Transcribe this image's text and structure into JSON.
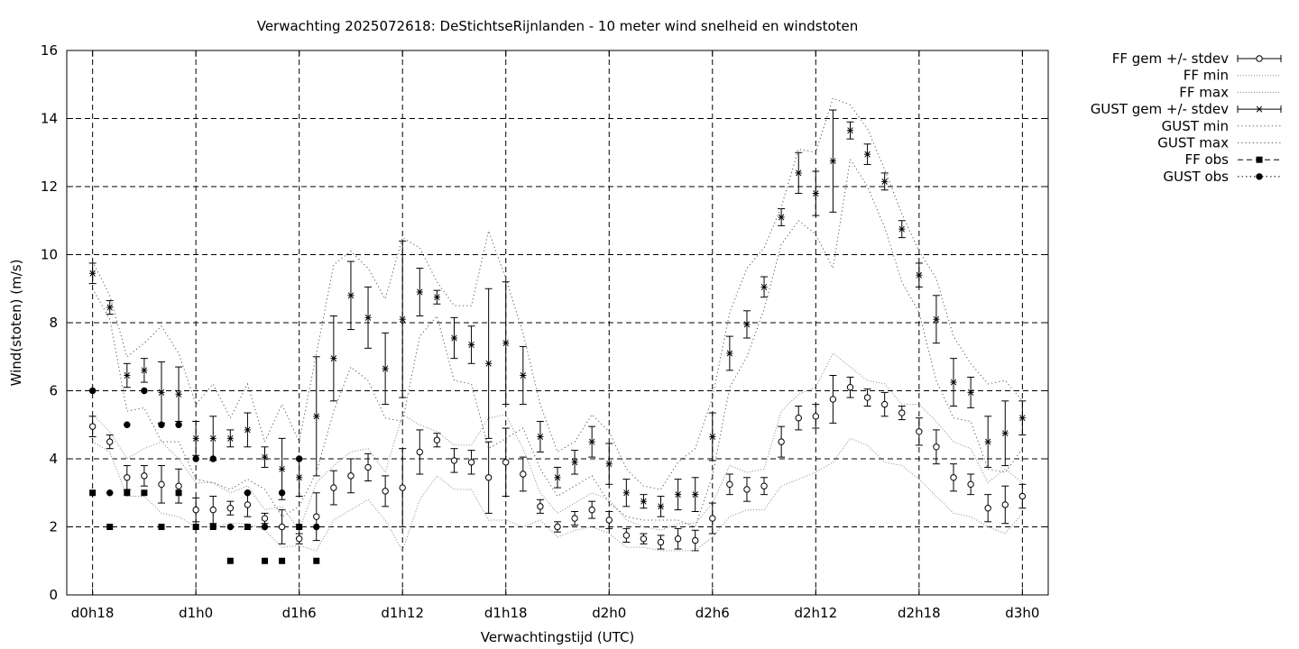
{
  "chart_data": {
    "type": "line",
    "title": "Verwachting 2025072618: DeStichtseRijnlanden - 10 meter wind snelheid en windstoten",
    "xlabel": "Verwachtingstijd (UTC)",
    "ylabel": "Wind(stoten) (m/s)",
    "x_unit": "hours since d0h18 (forecast lead, 1 h steps)",
    "xlim": [
      -1.5,
      55.5
    ],
    "ylim": [
      0,
      16
    ],
    "y_ticks": [
      0,
      2,
      4,
      6,
      8,
      10,
      12,
      14,
      16
    ],
    "x_ticks": [
      {
        "x": 0,
        "label": "d0h18"
      },
      {
        "x": 6,
        "label": "d1h0"
      },
      {
        "x": 12,
        "label": "d1h6"
      },
      {
        "x": 18,
        "label": "d1h12"
      },
      {
        "x": 24,
        "label": "d1h18"
      },
      {
        "x": 30,
        "label": "d2h0"
      },
      {
        "x": 36,
        "label": "d2h6"
      },
      {
        "x": 42,
        "label": "d2h12"
      },
      {
        "x": 48,
        "label": "d2h18"
      },
      {
        "x": 54,
        "label": "d3h0"
      }
    ],
    "grid": true,
    "legend_position": "outside-right-top",
    "legend": [
      "FF gem +/- stdev",
      "FF min",
      "FF max",
      "GUST gem +/- stdev",
      "GUST min",
      "GUST max",
      "FF obs",
      "GUST obs"
    ],
    "series": [
      {
        "name": "FF gem +/- stdev",
        "style": "open-circle-errorbar",
        "x": [
          0,
          1,
          2,
          3,
          4,
          5,
          6,
          7,
          8,
          9,
          10,
          11,
          12,
          13,
          14,
          15,
          16,
          17,
          18,
          19,
          20,
          21,
          22,
          23,
          24,
          25,
          26,
          27,
          28,
          29,
          30,
          31,
          32,
          33,
          34,
          35,
          36,
          37,
          38,
          39,
          40,
          41,
          42,
          43,
          44,
          45,
          46,
          47,
          48,
          49,
          50,
          51,
          52,
          53,
          54
        ],
        "y": [
          4.95,
          4.5,
          3.45,
          3.5,
          3.25,
          3.2,
          2.5,
          2.5,
          2.55,
          2.65,
          2.25,
          2.0,
          1.65,
          2.3,
          3.15,
          3.5,
          3.75,
          3.05,
          3.15,
          4.2,
          4.55,
          3.95,
          3.9,
          3.45,
          3.9,
          3.55,
          2.6,
          2.0,
          2.25,
          2.5,
          2.2,
          1.75,
          1.65,
          1.55,
          1.65,
          1.6,
          2.25,
          3.25,
          3.1,
          3.2,
          4.5,
          5.2,
          5.25,
          5.75,
          6.1,
          5.8,
          5.6,
          5.35,
          4.8,
          4.35,
          3.45,
          3.25,
          2.55,
          2.65,
          2.9
        ],
        "err": [
          0.3,
          0.2,
          0.35,
          0.3,
          0.55,
          0.5,
          0.35,
          0.4,
          0.2,
          0.35,
          0.15,
          0.5,
          0.15,
          0.7,
          0.5,
          0.5,
          0.4,
          0.45,
          1.15,
          0.65,
          0.2,
          0.35,
          0.35,
          1.05,
          1.0,
          0.5,
          0.2,
          0.15,
          0.2,
          0.25,
          0.25,
          0.2,
          0.15,
          0.2,
          0.3,
          0.3,
          0.45,
          0.3,
          0.35,
          0.25,
          0.45,
          0.35,
          0.35,
          0.7,
          0.3,
          0.25,
          0.35,
          0.2,
          0.4,
          0.5,
          0.4,
          0.3,
          0.4,
          0.55,
          0.35
        ]
      },
      {
        "name": "FF min",
        "style": "dotted",
        "x": [
          0,
          1,
          2,
          3,
          4,
          5,
          6,
          7,
          8,
          9,
          10,
          11,
          12,
          13,
          14,
          15,
          16,
          17,
          18,
          19,
          20,
          21,
          22,
          23,
          24,
          25,
          26,
          27,
          28,
          29,
          30,
          31,
          32,
          33,
          34,
          35,
          36,
          37,
          38,
          39,
          40,
          41,
          42,
          43,
          44,
          45,
          46,
          47,
          48,
          49,
          50,
          51,
          52,
          53,
          54
        ],
        "y": [
          4.5,
          4.2,
          2.9,
          2.9,
          2.4,
          2.3,
          2.0,
          2.0,
          2.1,
          2.1,
          1.9,
          1.4,
          1.45,
          1.3,
          2.2,
          2.5,
          2.8,
          2.2,
          1.3,
          2.8,
          3.5,
          3.1,
          3.1,
          2.2,
          2.2,
          2.0,
          2.2,
          1.7,
          1.9,
          2.0,
          1.8,
          1.4,
          1.4,
          1.3,
          1.3,
          1.3,
          1.7,
          2.3,
          2.5,
          2.5,
          3.2,
          3.4,
          3.6,
          3.9,
          4.6,
          4.4,
          3.9,
          3.8,
          3.4,
          2.9,
          2.4,
          2.3,
          2.0,
          1.8,
          2.4
        ]
      },
      {
        "name": "FF max",
        "style": "dotted",
        "x": [
          0,
          1,
          2,
          3,
          4,
          5,
          6,
          7,
          8,
          9,
          10,
          11,
          12,
          13,
          14,
          15,
          16,
          17,
          18,
          19,
          20,
          21,
          22,
          23,
          24,
          25,
          26,
          27,
          28,
          29,
          30,
          31,
          32,
          33,
          34,
          35,
          36,
          37,
          38,
          39,
          40,
          41,
          42,
          43,
          44,
          45,
          46,
          47,
          48,
          49,
          50,
          51,
          52,
          53,
          54
        ],
        "y": [
          5.3,
          4.8,
          4.0,
          4.3,
          4.5,
          4.0,
          3.3,
          3.3,
          3.0,
          3.2,
          2.5,
          2.6,
          1.9,
          3.3,
          3.8,
          4.2,
          4.3,
          3.6,
          5.3,
          5.0,
          4.8,
          4.4,
          4.4,
          5.2,
          5.3,
          4.3,
          3.0,
          2.4,
          2.7,
          3.0,
          2.8,
          2.2,
          2.0,
          1.9,
          2.1,
          2.1,
          2.7,
          3.8,
          3.6,
          3.7,
          5.4,
          5.9,
          6.1,
          7.1,
          6.7,
          6.3,
          6.2,
          5.6,
          5.6,
          5.1,
          4.5,
          4.3,
          3.3,
          3.7,
          3.3
        ]
      },
      {
        "name": "GUST gem +/- stdev",
        "style": "star-errorbar",
        "x": [
          0,
          1,
          2,
          3,
          4,
          5,
          6,
          7,
          8,
          9,
          10,
          11,
          12,
          13,
          14,
          15,
          16,
          17,
          18,
          19,
          20,
          21,
          22,
          23,
          24,
          25,
          26,
          27,
          28,
          29,
          30,
          31,
          32,
          33,
          34,
          35,
          36,
          37,
          38,
          39,
          40,
          41,
          42,
          43,
          44,
          45,
          46,
          47,
          48,
          49,
          50,
          51,
          52,
          53,
          54
        ],
        "y": [
          9.45,
          8.45,
          6.45,
          6.6,
          5.95,
          5.9,
          4.6,
          4.6,
          4.6,
          4.85,
          4.05,
          3.7,
          3.45,
          5.25,
          6.95,
          8.8,
          8.15,
          6.65,
          8.1,
          8.9,
          8.75,
          7.55,
          7.35,
          6.8,
          7.4,
          6.45,
          4.65,
          3.45,
          3.9,
          4.5,
          3.85,
          3.0,
          2.75,
          2.6,
          2.95,
          2.95,
          4.65,
          7.1,
          7.95,
          9.05,
          11.1,
          12.4,
          11.8,
          12.75,
          13.65,
          12.95,
          12.15,
          10.75,
          9.4,
          8.1,
          6.25,
          5.95,
          4.5,
          4.75,
          5.2
        ],
        "err": [
          0.3,
          0.2,
          0.35,
          0.35,
          0.9,
          0.8,
          0.5,
          0.65,
          0.25,
          0.5,
          0.3,
          0.9,
          0.55,
          1.75,
          1.25,
          1.0,
          0.9,
          1.05,
          2.3,
          0.7,
          0.2,
          0.6,
          0.55,
          2.2,
          1.8,
          0.85,
          0.45,
          0.3,
          0.35,
          0.45,
          0.6,
          0.4,
          0.2,
          0.3,
          0.45,
          0.5,
          0.7,
          0.5,
          0.4,
          0.3,
          0.25,
          0.6,
          0.65,
          1.5,
          0.25,
          0.3,
          0.25,
          0.25,
          0.35,
          0.7,
          0.7,
          0.45,
          0.75,
          0.95,
          0.5
        ]
      },
      {
        "name": "GUST min",
        "style": "dotted",
        "x": [
          0,
          1,
          2,
          3,
          4,
          5,
          6,
          7,
          8,
          9,
          10,
          11,
          12,
          13,
          14,
          15,
          16,
          17,
          18,
          19,
          20,
          21,
          22,
          23,
          24,
          25,
          26,
          27,
          28,
          29,
          30,
          31,
          32,
          33,
          34,
          35,
          36,
          37,
          38,
          39,
          40,
          41,
          42,
          43,
          44,
          45,
          46,
          47,
          48,
          49,
          50,
          51,
          52,
          53,
          54
        ],
        "y": [
          9.0,
          8.1,
          5.4,
          5.5,
          4.5,
          4.5,
          3.4,
          3.3,
          3.1,
          3.4,
          3.1,
          2.3,
          2.6,
          3.6,
          5.4,
          6.7,
          6.3,
          5.2,
          5.1,
          7.6,
          8.2,
          6.3,
          6.2,
          4.3,
          4.6,
          4.9,
          3.7,
          2.9,
          3.2,
          3.5,
          2.7,
          2.3,
          2.2,
          2.2,
          2.2,
          2.0,
          3.5,
          6.1,
          7.0,
          8.4,
          10.3,
          11.0,
          10.6,
          9.6,
          12.8,
          12.0,
          10.8,
          9.2,
          8.3,
          6.3,
          5.2,
          5.1,
          3.7,
          3.6,
          4.3
        ]
      },
      {
        "name": "GUST max",
        "style": "dotted",
        "x": [
          0,
          1,
          2,
          3,
          4,
          5,
          6,
          7,
          8,
          9,
          10,
          11,
          12,
          13,
          14,
          15,
          16,
          17,
          18,
          19,
          20,
          21,
          22,
          23,
          24,
          25,
          26,
          27,
          28,
          29,
          30,
          31,
          32,
          33,
          34,
          35,
          36,
          37,
          38,
          39,
          40,
          41,
          42,
          43,
          44,
          45,
          46,
          47,
          48,
          49,
          50,
          51,
          52,
          53,
          54
        ],
        "y": [
          9.8,
          8.8,
          7.0,
          7.4,
          7.9,
          7.1,
          5.6,
          6.2,
          5.2,
          6.2,
          4.5,
          5.6,
          4.5,
          7.1,
          9.7,
          10.1,
          9.6,
          8.7,
          10.5,
          10.2,
          9.2,
          8.5,
          8.5,
          10.7,
          9.3,
          7.7,
          5.6,
          4.2,
          4.5,
          5.3,
          4.8,
          3.7,
          3.2,
          3.1,
          3.9,
          4.3,
          5.8,
          8.3,
          9.6,
          10.2,
          11.4,
          13.1,
          13.0,
          14.6,
          14.4,
          13.7,
          12.5,
          11.2,
          10.1,
          9.3,
          7.6,
          6.8,
          6.2,
          6.3,
          5.7
        ]
      },
      {
        "name": "FF obs",
        "style": "filled-square",
        "x": [
          0,
          1,
          2,
          3,
          4,
          5,
          6,
          7,
          8,
          9,
          10,
          11,
          12,
          13
        ],
        "y": [
          3,
          2,
          3,
          3,
          2,
          3,
          2,
          2,
          1,
          2,
          1,
          1,
          2,
          1
        ]
      },
      {
        "name": "GUST obs",
        "style": "filled-circle",
        "x": [
          0,
          1,
          2,
          3,
          4,
          5,
          6,
          7,
          8,
          9,
          10,
          11,
          12,
          13
        ],
        "y": [
          6,
          3,
          5,
          6,
          5,
          5,
          4,
          4,
          2,
          3,
          2,
          3,
          4,
          2
        ]
      }
    ]
  }
}
